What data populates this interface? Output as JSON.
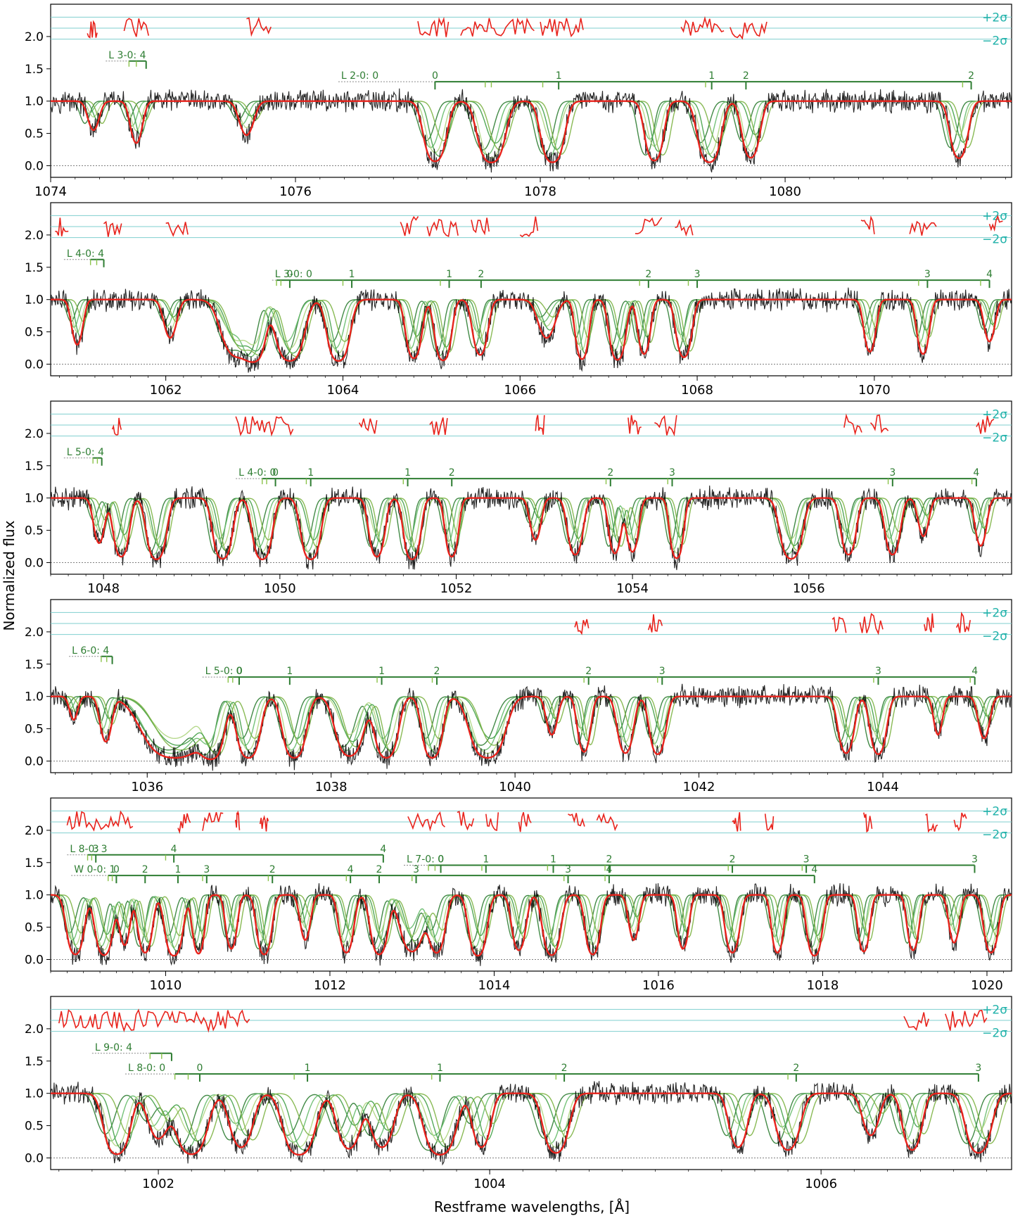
{
  "figure": {
    "ylabel": "Normalized flux",
    "xlabel": "Restframe wavelengths, [Å]",
    "sigma_plus": "+2σ",
    "sigma_minus": "−2σ"
  },
  "colors": {
    "spectrum": "#000000",
    "model": "#e8231c",
    "residuals": "#e8231c",
    "sigma_lines": "#7fcfcf",
    "sigma_text": "#20b2aa",
    "components": [
      "#2e7d32",
      "#66bb6a",
      "#aed581",
      "#43a047",
      "#7cb342"
    ],
    "component_fill": "#5a8f5a",
    "ticks": "#2e7d32",
    "zero_line": "#555555"
  },
  "chart_data": [
    {
      "type": "line",
      "xlim": [
        1074.0,
        1081.85
      ],
      "ylim": [
        -0.18,
        2.5
      ],
      "xticks": [
        "1074",
        "1076",
        "1078",
        "1080"
      ],
      "yticks": [
        "0.0",
        "0.5",
        "1.0",
        "1.5",
        "2.0"
      ],
      "absorption_lines": [
        [
          1077.14,
          0.9,
          0.06
        ],
        [
          1077.6,
          1.0,
          0.07
        ],
        [
          1078.1,
          0.98,
          0.06
        ],
        [
          1078.93,
          0.85,
          0.05
        ],
        [
          1079.38,
          0.98,
          0.06
        ],
        [
          1079.72,
          0.7,
          0.05
        ],
        [
          1081.42,
          0.72,
          0.05
        ],
        [
          1074.35,
          0.2,
          0.04
        ],
        [
          1074.7,
          0.35,
          0.04
        ],
        [
          1075.6,
          0.25,
          0.05
        ]
      ],
      "residual_ranges": [
        [
          1074.3,
          1074.38
        ],
        [
          1074.6,
          1074.8
        ],
        [
          1075.6,
          1075.8
        ],
        [
          1077.0,
          1077.25
        ],
        [
          1077.35,
          1077.95
        ],
        [
          1078.0,
          1078.35
        ],
        [
          1079.15,
          1079.5
        ],
        [
          1079.55,
          1079.85
        ]
      ],
      "line_series": [
        {
          "label": "L 3-0: 4",
          "label_x": 1074.45,
          "y": 1.62,
          "ticks": [
            1074.78
          ],
          "short_ticks": [
            1074.64,
            1074.7
          ]
        },
        {
          "label": "L 2-0: 0",
          "label_x": 1076.35,
          "y": 1.3,
          "ticks": [
            1077.14,
            1078.15,
            1079.4,
            1079.68,
            1081.52
          ],
          "tick_labels": [
            "0",
            "1",
            "1",
            "2",
            "2"
          ],
          "short_ticks": [
            1077.55,
            1077.6,
            1078.02,
            1079.35,
            1081.45
          ]
        }
      ]
    },
    {
      "type": "line",
      "xlim": [
        1060.7,
        1071.55
      ],
      "ylim": [
        -0.18,
        2.5
      ],
      "xticks": [
        "1062",
        "1064",
        "1066",
        "1068",
        "1070"
      ],
      "yticks": [
        "0.0",
        "0.5",
        "1.0",
        "1.5",
        "2.0"
      ],
      "absorption_lines": [
        [
          1061.0,
          0.4,
          0.05
        ],
        [
          1062.05,
          0.3,
          0.06
        ],
        [
          1063.0,
          0.95,
          0.08
        ],
        [
          1063.4,
          1.0,
          0.1
        ],
        [
          1063.95,
          1.0,
          0.08
        ],
        [
          1064.8,
          0.8,
          0.06
        ],
        [
          1065.13,
          0.95,
          0.06
        ],
        [
          1065.55,
          0.65,
          0.06
        ],
        [
          1066.7,
          0.85,
          0.05
        ],
        [
          1067.1,
          0.9,
          0.06
        ],
        [
          1067.4,
          0.62,
          0.05
        ],
        [
          1067.85,
          0.75,
          0.06
        ],
        [
          1069.95,
          0.55,
          0.05
        ],
        [
          1070.55,
          0.62,
          0.05
        ],
        [
          1071.3,
          0.35,
          0.05
        ],
        [
          1062.8,
          0.7,
          0.12
        ],
        [
          1066.3,
          0.3,
          0.08
        ]
      ],
      "residual_ranges": [
        [
          1060.75,
          1060.9
        ],
        [
          1061.3,
          1061.5
        ],
        [
          1062.0,
          1062.25
        ],
        [
          1064.65,
          1064.85
        ],
        [
          1064.95,
          1065.3
        ],
        [
          1065.45,
          1065.65
        ],
        [
          1066.0,
          1066.2
        ],
        [
          1067.3,
          1067.6
        ],
        [
          1067.75,
          1067.95
        ],
        [
          1069.85,
          1070.0
        ],
        [
          1070.4,
          1070.7
        ],
        [
          1071.3,
          1071.45
        ]
      ],
      "line_series": [
        {
          "label": "L 4-0: 4",
          "label_x": 1060.85,
          "y": 1.62,
          "ticks": [
            1061.3
          ],
          "short_ticks": [
            1061.15,
            1061.22
          ]
        },
        {
          "label": "L 3-0: 0",
          "label_x": 1063.2,
          "y": 1.3,
          "ticks": [
            1063.4,
            1064.1,
            1065.2,
            1065.56,
            1067.45,
            1068.0,
            1070.6,
            1071.3
          ],
          "tick_labels": [
            "0",
            "1",
            "1",
            "2",
            "2",
            "3",
            "3",
            "4"
          ],
          "short_ticks": [
            1063.25,
            1063.3,
            1064.0,
            1065.1,
            1067.35,
            1067.9,
            1070.5,
            1071.2
          ]
        }
      ]
    },
    {
      "type": "line",
      "xlim": [
        1047.4,
        1058.3
      ],
      "ylim": [
        -0.18,
        2.5
      ],
      "xticks": [
        "1048",
        "1050",
        "1052",
        "1054",
        "1056"
      ],
      "yticks": [
        "0.0",
        "0.5",
        "1.0",
        "1.5",
        "2.0"
      ],
      "absorption_lines": [
        [
          1047.95,
          0.4,
          0.05
        ],
        [
          1048.2,
          0.8,
          0.06
        ],
        [
          1048.6,
          1.0,
          0.07
        ],
        [
          1049.35,
          0.95,
          0.07
        ],
        [
          1049.8,
          1.0,
          0.07
        ],
        [
          1050.35,
          1.0,
          0.07
        ],
        [
          1051.1,
          0.8,
          0.06
        ],
        [
          1051.5,
          1.0,
          0.06
        ],
        [
          1051.95,
          0.8,
          0.05
        ],
        [
          1052.9,
          0.35,
          0.05
        ],
        [
          1053.35,
          0.7,
          0.06
        ],
        [
          1053.8,
          0.65,
          0.05
        ],
        [
          1054.0,
          0.6,
          0.05
        ],
        [
          1054.5,
          0.9,
          0.05
        ],
        [
          1055.8,
          0.95,
          0.08
        ],
        [
          1056.45,
          0.7,
          0.06
        ],
        [
          1056.95,
          0.7,
          0.06
        ],
        [
          1057.3,
          0.3,
          0.05
        ],
        [
          1057.95,
          0.45,
          0.05
        ]
      ],
      "residual_ranges": [
        [
          1048.1,
          1048.2
        ],
        [
          1049.5,
          1050.15
        ],
        [
          1050.9,
          1051.1
        ],
        [
          1051.7,
          1051.9
        ],
        [
          1052.9,
          1053.0
        ],
        [
          1053.95,
          1054.1
        ],
        [
          1054.25,
          1054.5
        ],
        [
          1056.4,
          1056.6
        ],
        [
          1056.7,
          1056.9
        ],
        [
          1057.9,
          1058.1
        ]
      ],
      "line_series": [
        {
          "label": "L 5-0: 4",
          "label_x": 1047.55,
          "y": 1.62,
          "ticks": [
            1047.98
          ],
          "short_ticks": [
            1047.88,
            1047.93
          ]
        },
        {
          "label": "L 4-0: 0",
          "label_x": 1049.5,
          "y": 1.3,
          "ticks": [
            1049.95,
            1050.35,
            1051.45,
            1051.95,
            1053.75,
            1054.45,
            1056.95,
            1057.9
          ],
          "tick_labels": [
            "0",
            "1",
            "1",
            "2",
            "2",
            "3",
            "3",
            "4"
          ],
          "short_ticks": [
            1049.8,
            1049.85,
            1050.3,
            1051.4,
            1053.7,
            1054.4,
            1056.9,
            1057.85
          ]
        }
      ]
    },
    {
      "type": "line",
      "xlim": [
        1034.95,
        1045.4
      ],
      "ylim": [
        -0.18,
        2.5
      ],
      "xticks": [
        "1036",
        "1038",
        "1040",
        "1042",
        "1044"
      ],
      "yticks": [
        "0.0",
        "0.5",
        "1.0",
        "1.5",
        "2.0"
      ],
      "absorption_lines": [
        [
          1035.2,
          0.15,
          0.04
        ],
        [
          1035.55,
          0.4,
          0.05
        ],
        [
          1036.3,
          1.0,
          0.22
        ],
        [
          1036.7,
          1.0,
          0.08
        ],
        [
          1037.1,
          1.0,
          0.08
        ],
        [
          1037.6,
          1.0,
          0.08
        ],
        [
          1038.2,
          0.85,
          0.1
        ],
        [
          1038.6,
          1.0,
          0.08
        ],
        [
          1039.1,
          1.0,
          0.07
        ],
        [
          1039.7,
          1.0,
          0.12
        ],
        [
          1040.4,
          0.3,
          0.05
        ],
        [
          1040.75,
          0.65,
          0.05
        ],
        [
          1041.2,
          0.7,
          0.06
        ],
        [
          1041.55,
          0.75,
          0.06
        ],
        [
          1043.6,
          0.7,
          0.06
        ],
        [
          1043.95,
          0.75,
          0.06
        ],
        [
          1044.6,
          0.3,
          0.04
        ],
        [
          1045.1,
          0.35,
          0.05
        ]
      ],
      "residual_ranges": [
        [
          1040.65,
          1040.8
        ],
        [
          1041.45,
          1041.6
        ],
        [
          1043.45,
          1043.6
        ],
        [
          1043.75,
          1044.0
        ],
        [
          1044.45,
          1044.55
        ],
        [
          1044.8,
          1044.95
        ]
      ],
      "line_series": [
        {
          "label": "L 6-0: 4",
          "label_x": 1035.15,
          "y": 1.62,
          "ticks": [
            1035.62
          ],
          "short_ticks": [
            1035.5,
            1035.56
          ]
        },
        {
          "label": "L 5-0: 0",
          "label_x": 1036.6,
          "y": 1.3,
          "ticks": [
            1037.0,
            1037.55,
            1038.55,
            1039.15,
            1040.8,
            1041.6,
            1043.95,
            1045.0
          ],
          "tick_labels": [
            "0",
            "1",
            "1",
            "2",
            "2",
            "3",
            "3",
            "4"
          ],
          "short_ticks": [
            1036.88,
            1036.93,
            1038.5,
            1039.1,
            1040.75,
            1041.55,
            1043.9,
            1044.95
          ]
        }
      ]
    },
    {
      "type": "line",
      "xlim": [
        1008.6,
        1020.3
      ],
      "ylim": [
        -0.18,
        2.5
      ],
      "xticks": [
        "1010",
        "1012",
        "1014",
        "1016",
        "1018",
        "1020"
      ],
      "yticks": [
        "0.0",
        "0.5",
        "1.0",
        "1.5",
        "2.0"
      ],
      "absorption_lines": [
        [
          1008.9,
          0.85,
          0.07
        ],
        [
          1009.25,
          0.9,
          0.07
        ],
        [
          1009.5,
          0.5,
          0.05
        ],
        [
          1009.75,
          0.75,
          0.06
        ],
        [
          1010.1,
          0.95,
          0.07
        ],
        [
          1010.4,
          0.8,
          0.05
        ],
        [
          1010.8,
          0.6,
          0.05
        ],
        [
          1011.2,
          0.85,
          0.06
        ],
        [
          1011.7,
          0.4,
          0.05
        ],
        [
          1012.2,
          0.75,
          0.06
        ],
        [
          1012.6,
          0.85,
          0.07
        ],
        [
          1013.0,
          0.7,
          0.1
        ],
        [
          1013.3,
          0.75,
          0.07
        ],
        [
          1013.8,
          0.95,
          0.07
        ],
        [
          1014.3,
          0.65,
          0.06
        ],
        [
          1014.7,
          0.9,
          0.07
        ],
        [
          1015.2,
          0.85,
          0.06
        ],
        [
          1015.7,
          0.4,
          0.05
        ],
        [
          1016.3,
          0.6,
          0.05
        ],
        [
          1016.9,
          0.75,
          0.06
        ],
        [
          1017.45,
          0.75,
          0.05
        ],
        [
          1017.9,
          0.95,
          0.06
        ],
        [
          1018.5,
          0.7,
          0.05
        ],
        [
          1019.1,
          0.65,
          0.05
        ],
        [
          1019.6,
          0.45,
          0.05
        ],
        [
          1020.05,
          0.75,
          0.06
        ]
      ],
      "residual_ranges": [
        [
          1008.8,
          1009.6
        ],
        [
          1010.15,
          1010.3
        ],
        [
          1010.45,
          1010.7
        ],
        [
          1010.85,
          1010.9
        ],
        [
          1011.15,
          1011.25
        ],
        [
          1012.95,
          1013.4
        ],
        [
          1013.55,
          1013.75
        ],
        [
          1013.9,
          1014.05
        ],
        [
          1014.3,
          1014.45
        ],
        [
          1014.9,
          1015.1
        ],
        [
          1015.25,
          1015.5
        ],
        [
          1016.9,
          1017.0
        ],
        [
          1017.3,
          1017.4
        ],
        [
          1018.5,
          1018.6
        ],
        [
          1019.25,
          1019.4
        ],
        [
          1019.6,
          1019.75
        ]
      ],
      "line_series": [
        {
          "label": "L 8-0: 3",
          "label_x": 1008.8,
          "y": 1.62,
          "ticks": [
            1009.15,
            1010.1,
            1012.65
          ],
          "tick_labels": [
            "3",
            "4",
            "4"
          ],
          "short_ticks": [
            1009.05,
            1009.1,
            1010.0
          ]
        },
        {
          "label": "L 7-0: 0",
          "label_x": 1012.9,
          "y": 1.46,
          "ticks": [
            1013.35,
            1013.9,
            1014.72,
            1015.4,
            1016.9,
            1017.8,
            1019.85
          ],
          "tick_labels": [
            "0",
            "1",
            "1",
            "2",
            "2",
            "3",
            "3"
          ],
          "short_ticks": [
            1013.2,
            1013.28,
            1013.85,
            1014.65,
            1015.35,
            1016.85,
            1017.75
          ]
        },
        {
          "label": "W 0-0: 1",
          "label_x": 1008.85,
          "y": 1.3,
          "ticks": [
            1009.4,
            1009.75,
            1010.15,
            1010.5,
            1011.3,
            1012.25,
            1012.6,
            1013.05,
            1014.9,
            1015.4,
            1017.9
          ],
          "tick_labels": [
            "0",
            "2",
            "1",
            "3",
            "2",
            "4",
            "2",
            "3",
            "3",
            "4",
            "4"
          ],
          "short_ticks": [
            1009.3,
            1009.35,
            1010.45,
            1011.25,
            1012.2,
            1013.0,
            1014.85,
            1015.35
          ]
        }
      ]
    },
    {
      "type": "line",
      "xlim": [
        1001.35,
        1007.15
      ],
      "ylim": [
        -0.18,
        2.5
      ],
      "xticks": [
        "1002",
        "1004",
        "1006"
      ],
      "yticks": [
        "0.0",
        "0.5",
        "1.0",
        "1.5",
        "2.0"
      ],
      "absorption_lines": [
        [
          1001.75,
          0.95,
          0.05
        ],
        [
          1002.0,
          0.4,
          0.05
        ],
        [
          1002.2,
          0.95,
          0.06
        ],
        [
          1002.5,
          0.6,
          0.05
        ],
        [
          1002.85,
          1.0,
          0.06
        ],
        [
          1003.15,
          0.65,
          0.05
        ],
        [
          1003.35,
          0.6,
          0.05
        ],
        [
          1003.7,
          1.0,
          0.06
        ],
        [
          1003.95,
          0.6,
          0.04
        ],
        [
          1004.4,
          0.85,
          0.05
        ],
        [
          1005.5,
          0.6,
          0.04
        ],
        [
          1005.8,
          0.7,
          0.05
        ],
        [
          1006.3,
          0.35,
          0.04
        ],
        [
          1006.55,
          0.7,
          0.04
        ],
        [
          1006.95,
          0.85,
          0.05
        ]
      ],
      "residual_ranges": [
        [
          1001.4,
          1002.55
        ],
        [
          1006.5,
          1006.65
        ],
        [
          1006.75,
          1007.0
        ]
      ],
      "line_series": [
        {
          "label": "L 9-0: 4",
          "label_x": 1001.6,
          "y": 1.62,
          "ticks": [
            1002.08
          ],
          "short_ticks": [
            1001.95,
            1002.02
          ]
        },
        {
          "label": "L 8-0: 0",
          "label_x": 1001.8,
          "y": 1.3,
          "ticks": [
            1002.25,
            1002.9,
            1003.7,
            1004.45,
            1005.85,
            1006.95
          ],
          "tick_labels": [
            "0",
            "1",
            "1",
            "2",
            "2",
            "3"
          ],
          "short_ticks": [
            1002.1,
            1002.18,
            1002.82,
            1003.65,
            1004.4,
            1005.8
          ]
        }
      ]
    }
  ]
}
